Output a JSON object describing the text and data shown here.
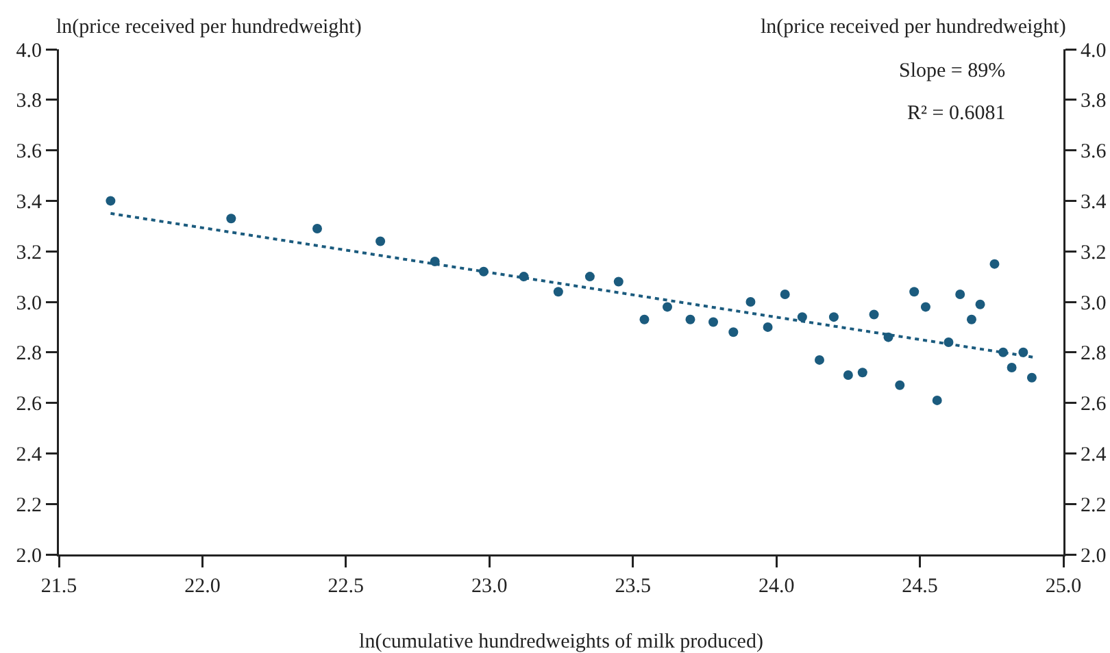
{
  "chart_data": {
    "type": "scatter",
    "xlabel": "ln(cumulative hundredweights of milk produced)",
    "ylabel": "ln(price received per hundredweight)",
    "y2label": "ln(price received per hundredweight)",
    "annotations": [
      "Slope = 89%",
      "R² = 0.6081"
    ],
    "xlim": [
      21.5,
      25.0
    ],
    "xticks": [
      {
        "value": 21.5,
        "label": "21.5"
      },
      {
        "value": 22,
        "label": "22.0"
      },
      {
        "value": 22.5,
        "label": "22.5"
      },
      {
        "value": 23,
        "label": "23.0"
      },
      {
        "value": 23.5,
        "label": "23.5"
      },
      {
        "value": 24,
        "label": "24.0"
      },
      {
        "value": 24.5,
        "label": "24.5"
      },
      {
        "value": 25,
        "label": "25.0"
      }
    ],
    "ylim": [
      2.0,
      4.0
    ],
    "yticks": [
      {
        "value": 2,
        "label": "2.0"
      },
      2.2,
      2.4,
      2.6,
      2.8,
      {
        "value": 3,
        "label": "3.0"
      },
      3.2,
      3.4,
      3.6,
      3.8,
      {
        "value": 4,
        "label": "4.0"
      }
    ],
    "y2lim": [
      2.0,
      4.0
    ],
    "y2ticks": [
      {
        "value": 2,
        "label": "2.0"
      },
      2.2,
      2.4,
      2.6,
      2.8,
      {
        "value": 3,
        "label": "3.0"
      },
      3.2,
      3.4,
      3.6,
      3.8,
      {
        "value": 4,
        "label": "4.0"
      }
    ],
    "grid": false,
    "legend": false,
    "marker": "circle",
    "series": [
      {
        "color": "#1b5b7e",
        "x": [
          21.68,
          22.1,
          22.4,
          22.62,
          22.81,
          22.98,
          23.12,
          23.24,
          23.35,
          23.45,
          23.54,
          23.62,
          23.7,
          23.78,
          23.85,
          23.91,
          23.97,
          24.03,
          24.09,
          24.15,
          24.2,
          24.25,
          24.3,
          24.34,
          24.39,
          24.43,
          24.48,
          24.52,
          24.56,
          24.6,
          24.64,
          24.68,
          24.71,
          24.76,
          24.79,
          24.82,
          24.86,
          24.89
        ],
        "values": [
          3.4,
          3.33,
          3.29,
          3.24,
          3.16,
          3.12,
          3.1,
          3.04,
          3.1,
          3.08,
          2.93,
          2.98,
          2.93,
          2.92,
          2.88,
          3.0,
          2.9,
          3.03,
          2.94,
          2.77,
          2.94,
          2.71,
          2.72,
          2.95,
          2.86,
          2.67,
          3.04,
          2.98,
          2.61,
          2.84,
          3.03,
          2.93,
          2.99,
          3.15,
          2.8,
          2.74,
          2.8,
          2.7
        ]
      },
      {
        "type": "line",
        "color": "#1b5b7e",
        "marker": "none",
        "line_style": "dotted",
        "x": [
          21.68,
          24.9
        ],
        "values": [
          3.35,
          2.78
        ]
      }
    ]
  }
}
